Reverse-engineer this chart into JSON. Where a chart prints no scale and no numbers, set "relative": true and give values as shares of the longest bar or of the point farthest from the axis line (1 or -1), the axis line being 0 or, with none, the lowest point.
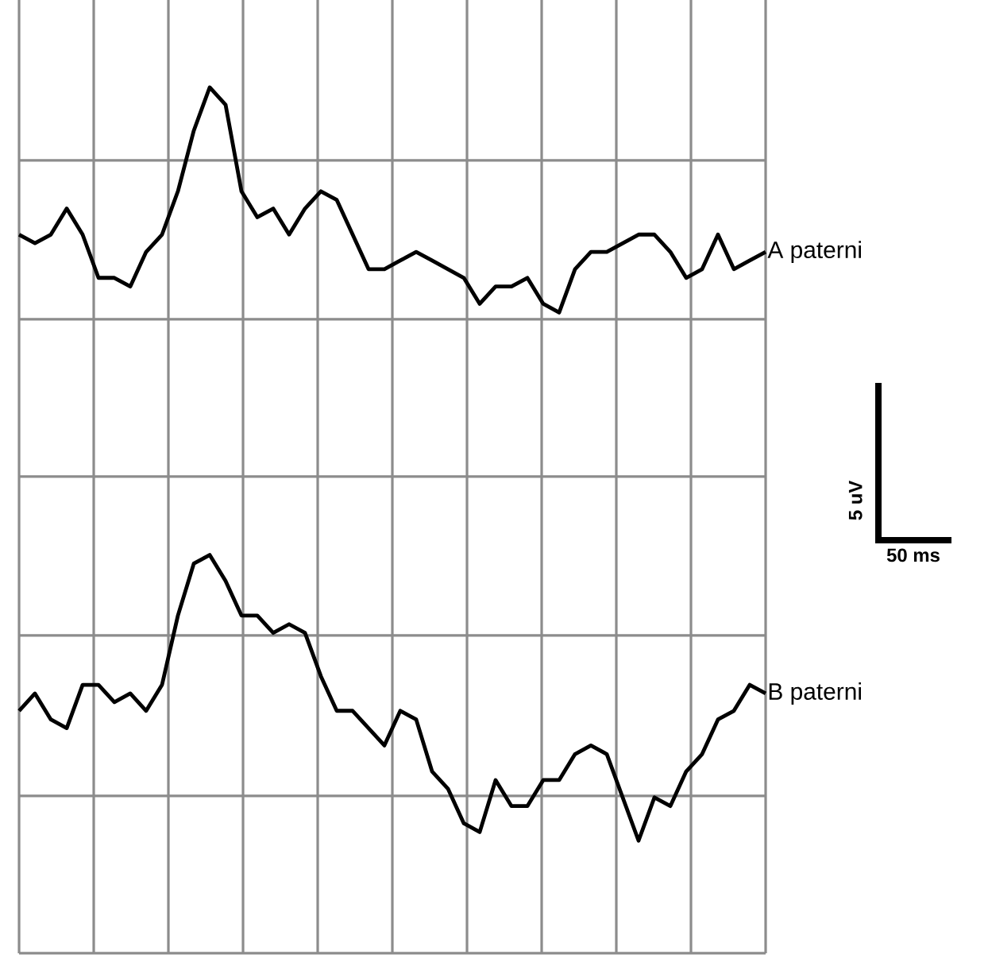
{
  "chart_data": {
    "type": "line",
    "relative": true,
    "grid": true,
    "categories": [
      null,
      null,
      null,
      null,
      null,
      null,
      null,
      null,
      null,
      null,
      null,
      null,
      null,
      null,
      null,
      null,
      null,
      null,
      null,
      null,
      null,
      null,
      null,
      null,
      null,
      null,
      null,
      null,
      null,
      null,
      null,
      null,
      null,
      null,
      null,
      null,
      null,
      null,
      null,
      null,
      null,
      null,
      null,
      null,
      null,
      null,
      null,
      null
    ],
    "series": [
      {
        "name": "A paterni",
        "color": "#000000",
        "values": [
          0.83,
          0.82,
          0.83,
          0.86,
          0.83,
          0.78,
          0.78,
          0.77,
          0.81,
          0.83,
          0.88,
          0.95,
          1.0,
          0.98,
          0.88,
          0.85,
          0.86,
          0.83,
          0.86,
          0.88,
          0.87,
          0.83,
          0.79,
          0.79,
          0.8,
          0.81,
          0.8,
          0.79,
          0.78,
          0.75,
          0.77,
          0.77,
          0.78,
          0.75,
          0.74,
          0.79,
          0.81,
          0.81,
          0.82,
          0.83,
          0.83,
          0.81,
          0.78,
          0.79,
          0.83,
          0.79,
          0.8,
          0.81
        ]
      },
      {
        "name": "B paterni",
        "color": "#000000",
        "values": [
          0.28,
          0.3,
          0.27,
          0.26,
          0.31,
          0.31,
          0.29,
          0.3,
          0.28,
          0.31,
          0.39,
          0.45,
          0.46,
          0.43,
          0.39,
          0.39,
          0.37,
          0.38,
          0.37,
          0.32,
          0.28,
          0.28,
          0.26,
          0.24,
          0.28,
          0.27,
          0.21,
          0.19,
          0.15,
          0.14,
          0.2,
          0.17,
          0.17,
          0.2,
          0.2,
          0.23,
          0.24,
          0.23,
          0.18,
          0.13,
          0.18,
          0.17,
          0.21,
          0.23,
          0.27,
          0.28,
          0.31,
          0.3
        ]
      }
    ],
    "annotations": [
      "5 uV",
      "50 ms"
    ]
  }
}
